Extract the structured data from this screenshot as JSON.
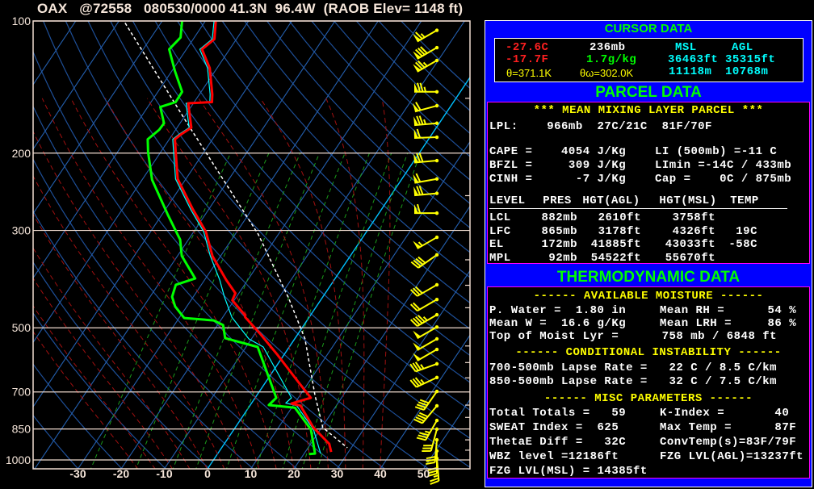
{
  "title": "OAX   @72558   080530/0000 41.3N  96.4W  (RAOB Elev= 1148 ft)",
  "chart_data": {
    "type": "line",
    "subtype": "skew-T log-P",
    "ylabel": "",
    "xlabel": "",
    "y_scale": "log",
    "ylim": [
      1100,
      100
    ],
    "y_ticks": [
      100,
      200,
      300,
      500,
      700,
      850,
      1000
    ],
    "y_minor_ticks": [
      150,
      250,
      350,
      400,
      450,
      550,
      600,
      650,
      750,
      800,
      900,
      950
    ],
    "x_ticks": [
      -30,
      -20,
      -10,
      0,
      10,
      20,
      30,
      40,
      50
    ],
    "grid": {
      "isotherms": true,
      "dry_adiabats": true,
      "moist_adiabats": true,
      "mixing_ratio": true
    },
    "colors": {
      "isotherm": "#2460b0",
      "zero_isotherm": "#00c0ff",
      "dry_adiabat": "#1e4f98",
      "moist_adiabat": "#a01010",
      "mixing_ratio": "#1a9a1a",
      "pressure_line": "#f0dcd0",
      "wind": "#ffff00"
    },
    "series": [
      {
        "color": "#ff0000",
        "style": "solid-thick",
        "points": [
          [
            100,
            -67.6
          ],
          [
            110,
            -65.1
          ],
          [
            116,
            -66.4
          ],
          [
            128,
            -61.7
          ],
          [
            147,
            -57.0
          ],
          [
            153,
            -55.9
          ],
          [
            154,
            -61.2
          ],
          [
            175,
            -56.7
          ],
          [
            181,
            -58.0
          ],
          [
            186,
            -58.7
          ],
          [
            199,
            -56.5
          ],
          [
            229,
            -51.9
          ],
          [
            269,
            -43.6
          ],
          [
            302,
            -37.2
          ],
          [
            343,
            -31.9
          ],
          [
            389,
            -25.0
          ],
          [
            417,
            -20.8
          ],
          [
            433,
            -20.4
          ],
          [
            467,
            -15.3
          ],
          [
            473,
            -14.8
          ],
          [
            515,
            -8.9
          ],
          [
            577,
            -1.4
          ],
          [
            663,
            7.4
          ],
          [
            722,
            12.9
          ],
          [
            744,
            9.3
          ],
          [
            752,
            11.7
          ],
          [
            844,
            18.1
          ],
          [
            919,
            24.3
          ],
          [
            959,
            26.0
          ]
        ]
      },
      {
        "color": "#00ff00",
        "style": "solid-thick",
        "points": [
          [
            100,
            -75.4
          ],
          [
            109,
            -73.2
          ],
          [
            116,
            -74.0
          ],
          [
            130,
            -69.3
          ],
          [
            145,
            -64.4
          ],
          [
            153,
            -64.3
          ],
          [
            157,
            -67.1
          ],
          [
            171,
            -63.7
          ],
          [
            177,
            -63.8
          ],
          [
            186,
            -65.0
          ],
          [
            199,
            -62.9
          ],
          [
            230,
            -57.7
          ],
          [
            277,
            -48.5
          ],
          [
            315,
            -41.9
          ],
          [
            343,
            -39.0
          ],
          [
            386,
            -32.4
          ],
          [
            399,
            -35.9
          ],
          [
            425,
            -34.9
          ],
          [
            447,
            -32.7
          ],
          [
            475,
            -28.8
          ],
          [
            481,
            -21.6
          ],
          [
            493,
            -18.7
          ],
          [
            528,
            -16.2
          ],
          [
            553,
            -7.3
          ],
          [
            722,
            4.9
          ],
          [
            750,
            4.3
          ],
          [
            760,
            10.7
          ],
          [
            852,
            17.8
          ],
          [
            967,
            22.5
          ],
          [
            970,
            21.2
          ]
        ]
      },
      {
        "color": "#00ffff",
        "style": "solid-thin",
        "points": [
          [
            100,
            -68.0
          ],
          [
            110,
            -65.6
          ],
          [
            116,
            -66.9
          ],
          [
            128,
            -62.2
          ],
          [
            147,
            -57.5
          ],
          [
            153,
            -56.4
          ],
          [
            154,
            -61.7
          ],
          [
            175,
            -57.2
          ],
          [
            181,
            -58.5
          ],
          [
            186,
            -59.2
          ],
          [
            199,
            -57.0
          ],
          [
            229,
            -52.4
          ],
          [
            269,
            -44.1
          ],
          [
            302,
            -37.7
          ],
          [
            343,
            -32.4
          ],
          [
            389,
            -26.5
          ],
          [
            424,
            -22.9
          ],
          [
            473,
            -17.9
          ],
          [
            530,
            -10.6
          ],
          [
            553,
            -6.0
          ],
          [
            722,
            8.4
          ],
          [
            742,
            7.9
          ],
          [
            752,
            10.8
          ],
          [
            852,
            18.4
          ],
          [
            967,
            23.8
          ]
        ]
      },
      {
        "color": "#ffffff",
        "style": "dashed",
        "points": [
          [
            101,
            -88.3
          ],
          [
            169,
            -59.0
          ],
          [
            306,
            -24.7
          ],
          [
            429,
            -7.6
          ],
          [
            530,
            2.4
          ],
          [
            713,
            13.5
          ],
          [
            844,
            20.3
          ],
          [
            938,
            29.1
          ]
        ]
      }
    ],
    "winds": [
      [
        105,
        240,
        65
      ],
      [
        115,
        240,
        80
      ],
      [
        123,
        240,
        75
      ],
      [
        145,
        270,
        75
      ],
      [
        156,
        255,
        60
      ],
      [
        171,
        265,
        75
      ],
      [
        184,
        268,
        60
      ],
      [
        208,
        265,
        70
      ],
      [
        229,
        260,
        60
      ],
      [
        247,
        265,
        70
      ],
      [
        274,
        270,
        60
      ],
      [
        311,
        240,
        55
      ],
      [
        341,
        235,
        40
      ],
      [
        399,
        240,
        30
      ],
      [
        431,
        240,
        20
      ],
      [
        467,
        240,
        45
      ],
      [
        498,
        240,
        50
      ],
      [
        530,
        240,
        50
      ],
      [
        560,
        240,
        50
      ],
      [
        604,
        250,
        35
      ],
      [
        649,
        245,
        35
      ],
      [
        698,
        215,
        40
      ],
      [
        753,
        220,
        40
      ],
      [
        813,
        210,
        35
      ],
      [
        851,
        195,
        30
      ],
      [
        900,
        185,
        30
      ],
      [
        954,
        180,
        30
      ],
      [
        992,
        175,
        25
      ]
    ]
  },
  "cursor": {
    "heading": "CURSOR DATA",
    "temp_c": "-27.6C",
    "temp_f": "-17.7F",
    "pressure": "236mb",
    "mixing_ratio": "1.7g/kg",
    "msl_label": "MSL",
    "agl_label": "AGL",
    "msl_ft": "36463ft",
    "agl_ft": "35315ft",
    "msl_m": "11118m",
    "agl_m": "10768m",
    "theta": "θ=371.1K",
    "theta_w": "θω=302.0K"
  },
  "parcel": {
    "heading": "PARCEL DATA",
    "type": "*** MEAN MIXING LAYER PARCEL ***",
    "lpl": "LPL:    966mb  27C/21C  81F/70F",
    "left": [
      "CAPE =    4054 J/Kg",
      "BFZL =     309 J/Kg",
      "CINH =      -7 J/Kg"
    ],
    "right": [
      "LI (500mb) =-11 C",
      "LImin =-14C / 433mb",
      "Cap =    0C / 875mb"
    ],
    "table_headers": [
      "LEVEL",
      "PRES",
      "HGT(AGL)",
      "HGT(MSL)",
      "TEMP"
    ],
    "table_rows": [
      [
        "LCL",
        "882mb",
        "2610ft",
        "3758ft",
        ""
      ],
      [
        "LFC",
        "865mb",
        "3178ft",
        "4326ft",
        "19C"
      ],
      [
        "EL",
        "172mb",
        "41885ft",
        "43033ft",
        "-58C"
      ],
      [
        "MPL",
        "92mb",
        "54522ft",
        "55670ft",
        ""
      ]
    ]
  },
  "thermo": {
    "heading": "THERMODYNAMIC DATA",
    "moisture_heading": "------ AVAILABLE MOISTURE ------",
    "pwater": "P. Water =  1.80 in",
    "mean_rh": "Mean RH =      54 %",
    "mean_w": "Mean W =  16.6 g/Kg",
    "mean_lrh": "Mean LRH =     86 %",
    "top_moist": "Top of Moist Lyr =      758 mb / 6848 ft",
    "instability_heading": "------ CONDITIONAL INSTABILITY ------",
    "lapse_700_500": "700-500mb Lapse Rate =   22 C / 8.5 C/km",
    "lapse_850_500": "850-500mb Lapse Rate =   32 C / 7.5 C/km",
    "misc_heading": "------ MISC PARAMETERS ------",
    "left": [
      "Total Totals =   59",
      "SWEAT Index =  625",
      "ThetaE Diff =   32C",
      "WBZ level =12186ft",
      "FZG LVL(MSL) = 14385ft"
    ],
    "right": [
      "K-Index =       40",
      "Max Temp =      87F",
      "ConvTemp(s)=83F/79F",
      "FZG LVL(AGL)=13237ft"
    ]
  }
}
